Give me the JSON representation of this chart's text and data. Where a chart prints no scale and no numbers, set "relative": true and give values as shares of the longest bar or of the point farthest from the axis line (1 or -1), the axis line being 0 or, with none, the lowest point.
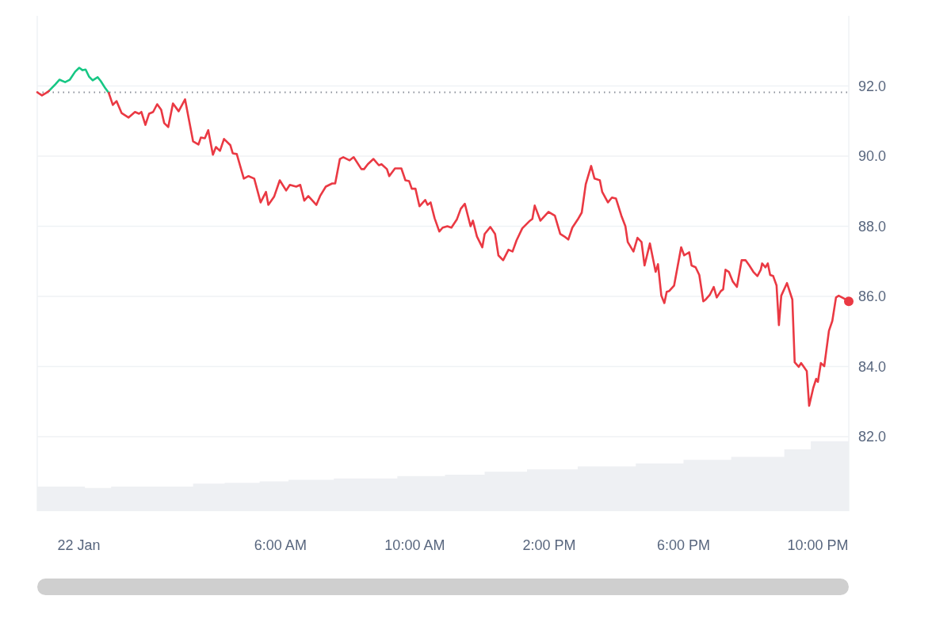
{
  "chart_data": [
    {
      "type": "line",
      "x": [
        -1.24,
        -1.1,
        -0.98,
        -0.89,
        -0.7,
        -0.58,
        -0.41,
        -0.27,
        -0.11,
        0.01,
        0.11,
        0.2,
        0.3,
        0.41,
        0.56,
        0.65,
        0.79,
        0.89,
        1.01,
        1.12,
        1.27,
        1.48,
        1.67,
        1.79,
        1.86,
        1.98,
        2.09,
        2.21,
        2.33,
        2.45,
        2.54,
        2.66,
        2.8,
        2.97,
        3.16,
        3.4,
        3.56,
        3.63,
        3.75,
        3.85,
        3.99,
        4.08,
        4.2,
        4.32,
        4.51,
        4.58,
        4.7,
        4.91,
        5.05,
        5.22,
        5.41,
        5.57,
        5.64,
        5.81,
        5.98,
        6.17,
        6.28,
        6.47,
        6.59,
        6.71,
        6.83,
        7.07,
        7.18,
        7.35,
        7.54,
        7.63,
        7.77,
        7.87,
        8.06,
        8.18,
        8.41,
        8.49,
        8.6,
        8.77,
        8.93,
        9.01,
        9.17,
        9.24,
        9.41,
        9.6,
        9.72,
        9.83,
        9.91,
        10.02,
        10.14,
        10.31,
        10.38,
        10.47,
        10.59,
        10.73,
        10.83,
        10.97,
        11.09,
        11.25,
        11.37,
        11.49,
        11.66,
        11.73,
        11.85,
        12.01,
        12.08,
        12.25,
        12.39,
        12.49,
        12.63,
        12.79,
        12.91,
        13.03,
        13.2,
        13.43,
        13.5,
        13.57,
        13.74,
        13.98,
        14.17,
        14.33,
        14.45,
        14.57,
        14.69,
        14.85,
        14.97,
        15.09,
        15.25,
        15.35,
        15.51,
        15.58,
        15.75,
        15.87,
        15.99,
        16.15,
        16.27,
        16.34,
        16.51,
        16.63,
        16.75,
        16.84,
        17.0,
        17.17,
        17.24,
        17.34,
        17.43,
        17.5,
        17.57,
        17.72,
        17.93,
        18.02,
        18.17,
        18.24,
        18.36,
        18.47,
        18.59,
        18.66,
        18.78,
        18.9,
        18.99,
        19.11,
        19.18,
        19.25,
        19.35,
        19.47,
        19.59,
        19.73,
        19.85,
        19.96,
        20.08,
        20.2,
        20.3,
        20.34,
        20.44,
        20.51,
        20.58,
        20.67,
        20.77,
        20.84,
        20.91,
        21.08,
        21.24,
        21.31,
        21.43,
        21.5,
        21.67,
        21.74,
        21.86,
        21.95,
        22.0,
        22.09,
        22.19,
        22.33,
        22.43,
        22.54,
        22.62,
        22.8,
        22.92
      ],
      "series": [
        {
          "color": "#16c784",
          "x": [
            -0.89,
            -0.7,
            -0.58,
            -0.41,
            -0.27,
            -0.11,
            0.01,
            0.11,
            0.2,
            0.3,
            0.41,
            0.56,
            0.65,
            0.79,
            0.89
          ],
          "values": [
            91.86,
            92.05,
            92.18,
            92.11,
            92.18,
            92.41,
            92.52,
            92.45,
            92.47,
            92.27,
            92.16,
            92.25,
            92.14,
            91.93,
            91.8
          ]
        },
        {
          "color": "#ea3943",
          "values": [
            91.82,
            91.73,
            91.8,
            91.86,
            null,
            null,
            null,
            null,
            null,
            null,
            null,
            null,
            null,
            null,
            null,
            null,
            null,
            91.8,
            91.46,
            91.57,
            91.23,
            91.1,
            91.26,
            91.21,
            91.26,
            90.89,
            91.21,
            91.26,
            91.48,
            91.32,
            90.94,
            90.83,
            91.5,
            91.28,
            91.62,
            90.42,
            90.33,
            90.53,
            90.51,
            90.74,
            90.04,
            90.26,
            90.15,
            90.49,
            90.31,
            90.08,
            90.06,
            89.36,
            89.43,
            89.36,
            88.68,
            88.98,
            88.61,
            88.84,
            89.31,
            89.02,
            89.18,
            89.13,
            89.18,
            88.73,
            88.86,
            88.61,
            88.86,
            89.13,
            89.22,
            89.22,
            89.92,
            89.97,
            89.88,
            89.97,
            89.63,
            89.63,
            89.77,
            89.92,
            89.74,
            89.77,
            89.63,
            89.43,
            89.65,
            89.65,
            89.31,
            89.29,
            89.07,
            89.07,
            88.57,
            88.75,
            88.61,
            88.68,
            88.23,
            87.85,
            87.96,
            88.0,
            87.96,
            88.19,
            88.5,
            88.64,
            88.0,
            88.16,
            87.71,
            87.4,
            87.78,
            87.98,
            87.78,
            87.17,
            87.03,
            87.33,
            87.28,
            87.6,
            87.94,
            88.16,
            88.21,
            88.59,
            88.16,
            88.41,
            88.3,
            87.78,
            87.71,
            87.62,
            87.96,
            88.19,
            88.39,
            89.2,
            89.72,
            89.36,
            89.31,
            88.98,
            88.68,
            88.82,
            88.79,
            88.3,
            88.0,
            87.55,
            87.28,
            87.67,
            87.55,
            86.88,
            87.51,
            86.7,
            86.92,
            86.02,
            85.81,
            86.13,
            86.15,
            86.31,
            87.4,
            87.17,
            87.26,
            86.88,
            86.83,
            86.61,
            85.86,
            85.91,
            86.04,
            86.27,
            85.97,
            86.15,
            86.2,
            86.76,
            86.7,
            86.42,
            86.27,
            87.03,
            87.03,
            86.88,
            86.7,
            86.58,
            86.76,
            86.94,
            86.83,
            86.94,
            86.61,
            86.58,
            86.31,
            85.18,
            86.02,
            86.38,
            85.91,
            84.12,
            83.99,
            84.1,
            83.87,
            82.88,
            83.38,
            83.65,
            83.56,
            84.1,
            84.01,
            85.02,
            85.3,
            85.97,
            86.02,
            85.93,
            85.86
          ]
        },
        {
          "type": "scatter",
          "marker": "circle",
          "color": "#ea3943",
          "x": [
            22.92
          ],
          "values": [
            85.86
          ]
        }
      ],
      "xlim": [
        -1.24,
        22.92
      ],
      "ylim": [
        82,
        94
      ],
      "yticks": [
        {
          "value": 82,
          "label": "82.0"
        },
        {
          "value": 84,
          "label": "84.0"
        },
        {
          "value": 86,
          "label": "86.0"
        },
        {
          "value": 88,
          "label": "88.0"
        },
        {
          "value": 90,
          "label": "90.0"
        },
        {
          "value": 92,
          "label": "92.0"
        }
      ],
      "ref_lines": [
        {
          "axis": "y",
          "value": 91.82,
          "color": "#8a8f99",
          "line_style": "dotted"
        }
      ],
      "grid": "y",
      "tick_labels": "y"
    },
    {
      "type": "area",
      "relative": true,
      "color": "#eef0f3",
      "x": [
        -1.24,
        0.18,
        0.96,
        3.4,
        4.34,
        5.38,
        6.24,
        7.59,
        9.48,
        10.9,
        12.08,
        13.34,
        14.85,
        16.58,
        18.0,
        19.42,
        21.0,
        21.79,
        22.92
      ],
      "values": [
        0.33,
        0.31,
        0.33,
        0.37,
        0.38,
        0.4,
        0.42,
        0.44,
        0.47,
        0.49,
        0.53,
        0.56,
        0.6,
        0.64,
        0.69,
        0.73,
        0.83,
        0.94,
        1.0
      ],
      "xlim": [
        -1.24,
        22.92
      ],
      "xticks": [
        {
          "value": 0,
          "label": "22 Jan"
        },
        {
          "value": 6,
          "label": "6:00 AM"
        },
        {
          "value": 10,
          "label": "10:00 AM"
        },
        {
          "value": 14,
          "label": "2:00 PM"
        },
        {
          "value": 18,
          "label": "6:00 PM"
        },
        {
          "value": 22,
          "label": "10:00 PM"
        }
      ],
      "tick_labels": "x"
    }
  ]
}
